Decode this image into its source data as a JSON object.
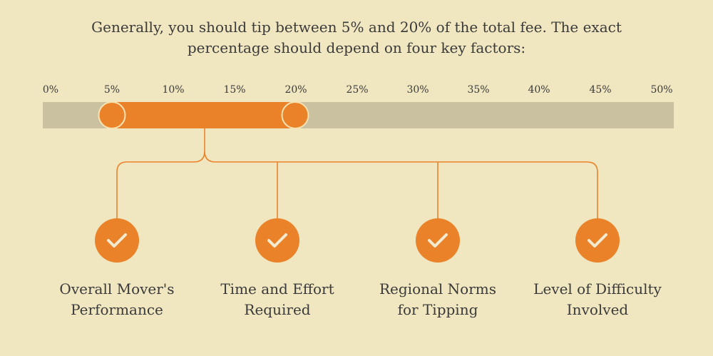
{
  "intro": {
    "line1": "Generally, you should tip between 5% and 20% of the total fee. The exact",
    "line2": "percentage should depend on four key factors:"
  },
  "scale": {
    "ticks": [
      "0%",
      "5%",
      "10%",
      "15%",
      "20%",
      "25%",
      "30%",
      "35%",
      "40%",
      "45%",
      "50%"
    ],
    "min": 0,
    "max": 50,
    "range_low": 5,
    "range_high": 20
  },
  "factors": [
    {
      "line1": "Overall Mover's",
      "line2": "Performance",
      "icon": "checkmark-icon"
    },
    {
      "line1": "Time and Effort",
      "line2": "Required",
      "icon": "checkmark-icon"
    },
    {
      "line1": "Regional Norms",
      "line2": "for Tipping",
      "icon": "checkmark-icon"
    },
    {
      "line1": "Level of Difficulty",
      "line2": "Involved",
      "icon": "checkmark-icon"
    }
  ],
  "colors": {
    "background": "#f0e6c0",
    "track": "#cac1a1",
    "accent": "#ea822a",
    "text": "#3a3a3a"
  }
}
